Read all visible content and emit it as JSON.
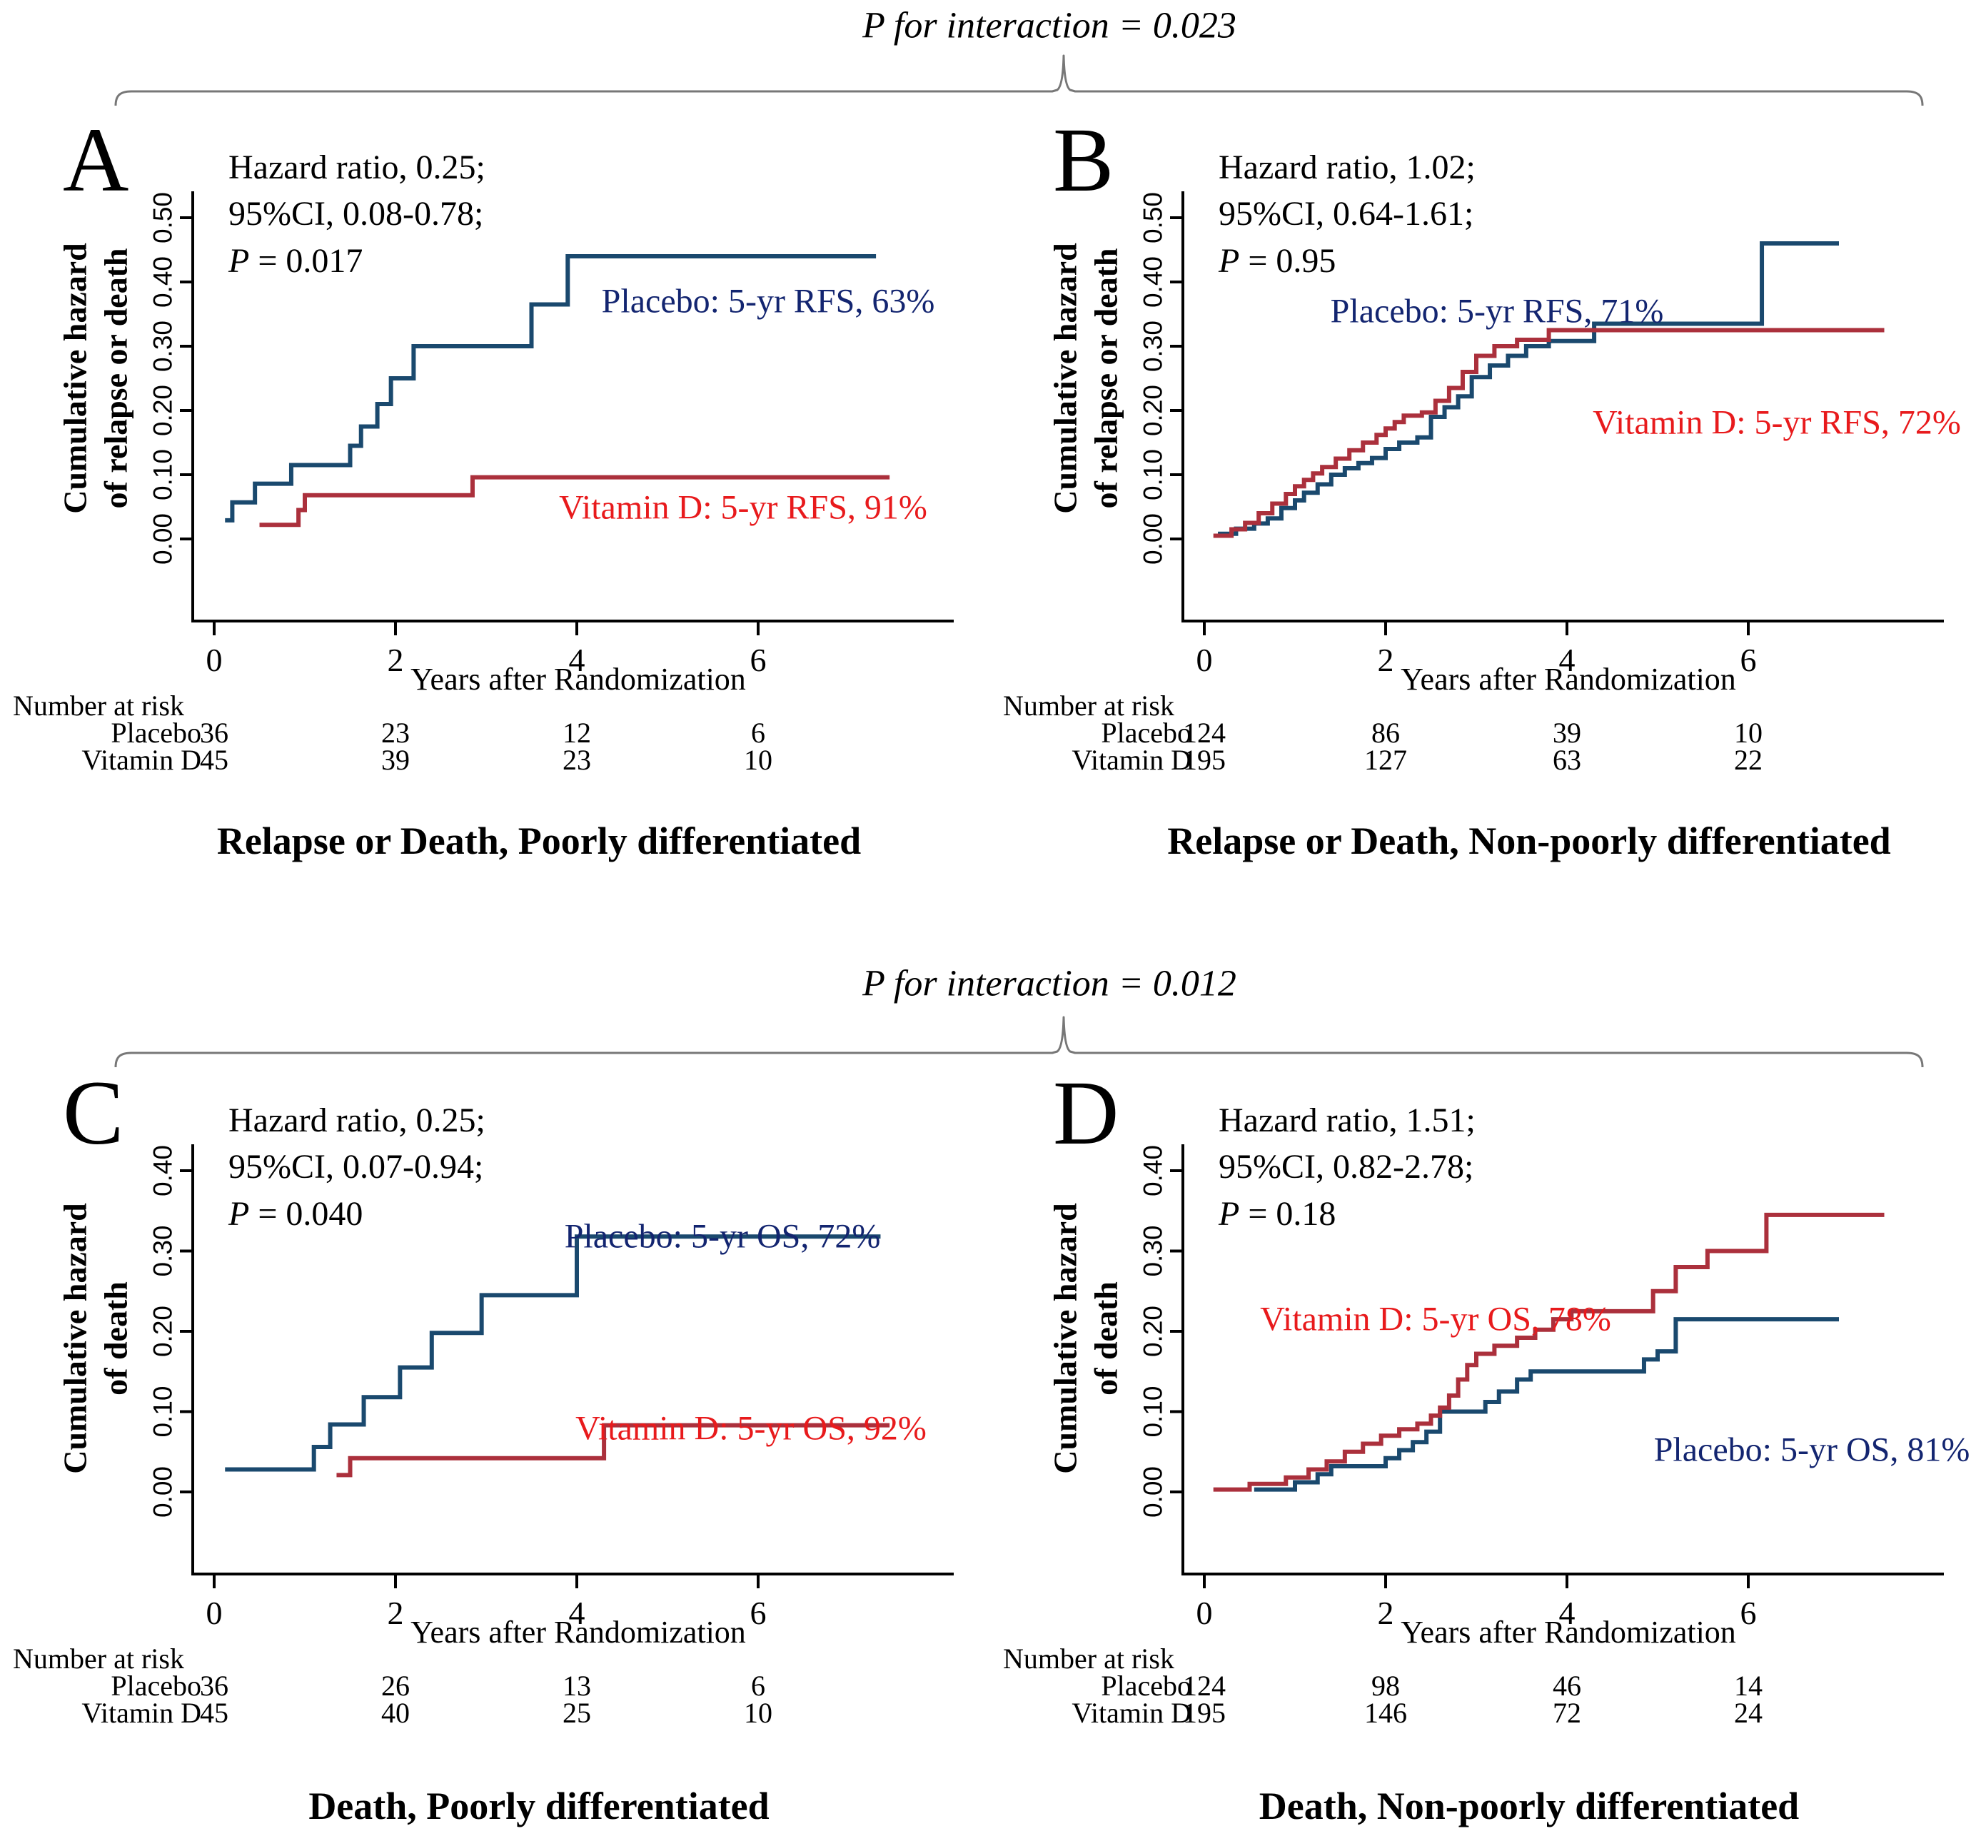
{
  "figure": {
    "braces": [
      {
        "label": "P for interaction = 0.023"
      },
      {
        "label": "P for interaction = 0.012"
      }
    ]
  },
  "colors": {
    "placebo_curve": "#1a496e",
    "vitamin_d_curve": "#ab303c",
    "placebo_label_text": "#132570",
    "vitamin_d_label_text": "#e81a1c",
    "axis": "#000000",
    "brace": "#777777"
  },
  "panels": [
    {
      "letter": "A",
      "stats": {
        "line1": "Hazard ratio, 0.25;",
        "line2": "95%CI, 0.08-0.78;",
        "p_label": "P",
        "p_rest": " = 0.017"
      },
      "ylabel_line1": "Cumulative hazard",
      "ylabel_line2": "of relapse or death",
      "xlabel": "Years after Randomization",
      "series_labels": {
        "placebo": "Placebo: 5-yr RFS, 63%",
        "vitamin_d": "Vitamin D: 5-yr RFS, 91%"
      },
      "risk": {
        "header": "Number at risk",
        "rows": [
          {
            "label": "Placebo",
            "values": [
              "36",
              "23",
              "12",
              "6"
            ]
          },
          {
            "label": "Vitamin D",
            "values": [
              "45",
              "39",
              "23",
              "10"
            ]
          }
        ]
      },
      "caption": "Relapse or Death, Poorly differentiated"
    },
    {
      "letter": "B",
      "stats": {
        "line1": "Hazard ratio, 1.02;",
        "line2": "95%CI, 0.64-1.61;",
        "p_label": "P",
        "p_rest": " = 0.95"
      },
      "ylabel_line1": "Cumulative hazard",
      "ylabel_line2": "of relapse or death",
      "xlabel": "Years after Randomization",
      "series_labels": {
        "placebo": "Placebo: 5-yr RFS, 71%",
        "vitamin_d": "Vitamin D: 5-yr RFS, 72%"
      },
      "risk": {
        "header": "Number at risk",
        "rows": [
          {
            "label": "Placebo",
            "values": [
              "124",
              "86",
              "39",
              "10"
            ]
          },
          {
            "label": "Vitamin D",
            "values": [
              "195",
              "127",
              "63",
              "22"
            ]
          }
        ]
      },
      "caption": "Relapse or Death, Non-poorly differentiated"
    },
    {
      "letter": "C",
      "stats": {
        "line1": "Hazard ratio, 0.25;",
        "line2": "95%CI, 0.07-0.94;",
        "p_label": "P",
        "p_rest": " = 0.040"
      },
      "ylabel_line1": "Cumulative hazard",
      "ylabel_line2": "of death",
      "xlabel": "Years after Randomization",
      "series_labels": {
        "placebo": "Placebo: 5-yr OS, 72%",
        "vitamin_d": "Vitamin D: 5-yr OS, 92%"
      },
      "risk": {
        "header": "Number at risk",
        "rows": [
          {
            "label": "Placebo",
            "values": [
              "36",
              "26",
              "13",
              "6"
            ]
          },
          {
            "label": "Vitamin D",
            "values": [
              "45",
              "40",
              "25",
              "10"
            ]
          }
        ]
      },
      "caption": "Death, Poorly differentiated"
    },
    {
      "letter": "D",
      "stats": {
        "line1": "Hazard ratio, 1.51;",
        "line2": "95%CI, 0.82-2.78;",
        "p_label": "P",
        "p_rest": " = 0.18"
      },
      "ylabel_line1": "Cumulative hazard",
      "ylabel_line2": "of death",
      "xlabel": "Years after Randomization",
      "series_labels": {
        "placebo": "Placebo: 5-yr OS, 81%",
        "vitamin_d": "Vitamin D: 5-yr OS, 78%"
      },
      "risk": {
        "header": "Number at risk",
        "rows": [
          {
            "label": "Placebo",
            "values": [
              "124",
              "98",
              "46",
              "14"
            ]
          },
          {
            "label": "Vitamin D",
            "values": [
              "195",
              "146",
              "72",
              "24"
            ]
          }
        ]
      },
      "caption": "Death, Non-poorly differentiated"
    }
  ],
  "chart_data": [
    {
      "panel": "A",
      "type": "line",
      "subtype": "step",
      "title": "Relapse or Death, Poorly differentiated",
      "xlabel": "Years after Randomization",
      "ylabel": "Cumulative hazard of relapse or death",
      "xticks": [
        0,
        2,
        4,
        6
      ],
      "xlim": [
        0,
        8
      ],
      "ylim": [
        0,
        0.5
      ],
      "grid": false,
      "yticks": [
        {
          "v": 0,
          "label": "0.00"
        },
        {
          "v": 0.1,
          "label": "0.10"
        },
        {
          "v": 0.2,
          "label": "0.20"
        },
        {
          "v": 0.3,
          "label": "0.30"
        },
        {
          "v": 0.4,
          "label": "0.40"
        },
        {
          "v": 0.5,
          "label": "0.50"
        }
      ],
      "hazard_ratio": "0.25",
      "ci_95": "0.08-0.78",
      "p_value": "0.017",
      "series": [
        {
          "name": "Placebo",
          "annotation": "Placebo: 5-yr RFS, 63%",
          "color": "#1a496e",
          "end": 7.3,
          "points": [
            [
              0.12,
              0.029
            ],
            [
              0.2,
              0.057
            ],
            [
              0.45,
              0.086
            ],
            [
              0.85,
              0.115
            ],
            [
              1.5,
              0.145
            ],
            [
              1.62,
              0.175
            ],
            [
              1.8,
              0.21
            ],
            [
              1.95,
              0.25
            ],
            [
              2.2,
              0.3
            ],
            [
              3.5,
              0.365
            ],
            [
              3.9,
              0.44
            ]
          ]
        },
        {
          "name": "Vitamin D",
          "annotation": "Vitamin D: 5-yr RFS, 91%",
          "color": "#ab303c",
          "end": 7.45,
          "points": [
            [
              0.5,
              0.022
            ],
            [
              0.93,
              0.045
            ],
            [
              1.0,
              0.068
            ],
            [
              2.85,
              0.096
            ]
          ]
        }
      ]
    },
    {
      "panel": "B",
      "type": "line",
      "subtype": "step",
      "title": "Relapse or Death, Non-poorly differentiated",
      "xlabel": "Years after Randomization",
      "ylabel": "Cumulative hazard of relapse or death",
      "xticks": [
        0,
        2,
        4,
        6
      ],
      "xlim": [
        0,
        8
      ],
      "ylim": [
        0,
        0.5
      ],
      "grid": false,
      "yticks": [
        {
          "v": 0,
          "label": "0.00"
        },
        {
          "v": 0.1,
          "label": "0.10"
        },
        {
          "v": 0.2,
          "label": "0.20"
        },
        {
          "v": 0.3,
          "label": "0.30"
        },
        {
          "v": 0.4,
          "label": "0.40"
        },
        {
          "v": 0.5,
          "label": "0.50"
        }
      ],
      "hazard_ratio": "1.02",
      "ci_95": "0.64-1.61",
      "p_value": "0.95",
      "series": [
        {
          "name": "Placebo",
          "annotation": "Placebo: 5-yr RFS, 71%",
          "color": "#1a496e",
          "end": 7.0,
          "points": [
            [
              0.15,
              0.008
            ],
            [
              0.35,
              0.016
            ],
            [
              0.55,
              0.024
            ],
            [
              0.7,
              0.032
            ],
            [
              0.85,
              0.048
            ],
            [
              1.0,
              0.06
            ],
            [
              1.1,
              0.072
            ],
            [
              1.25,
              0.085
            ],
            [
              1.4,
              0.1
            ],
            [
              1.55,
              0.11
            ],
            [
              1.7,
              0.118
            ],
            [
              1.85,
              0.126
            ],
            [
              2.0,
              0.14
            ],
            [
              2.15,
              0.15
            ],
            [
              2.35,
              0.158
            ],
            [
              2.5,
              0.19
            ],
            [
              2.65,
              0.205
            ],
            [
              2.8,
              0.222
            ],
            [
              2.95,
              0.252
            ],
            [
              3.15,
              0.27
            ],
            [
              3.35,
              0.285
            ],
            [
              3.55,
              0.3
            ],
            [
              3.8,
              0.308
            ],
            [
              4.3,
              0.335
            ],
            [
              6.15,
              0.46
            ]
          ]
        },
        {
          "name": "Vitamin D",
          "annotation": "Vitamin D: 5-yr RFS, 72%",
          "color": "#ab303c",
          "end": 7.5,
          "points": [
            [
              0.1,
              0.005
            ],
            [
              0.3,
              0.015
            ],
            [
              0.45,
              0.025
            ],
            [
              0.6,
              0.04
            ],
            [
              0.75,
              0.055
            ],
            [
              0.9,
              0.07
            ],
            [
              1.0,
              0.082
            ],
            [
              1.1,
              0.092
            ],
            [
              1.2,
              0.102
            ],
            [
              1.3,
              0.112
            ],
            [
              1.45,
              0.125
            ],
            [
              1.6,
              0.138
            ],
            [
              1.75,
              0.15
            ],
            [
              1.9,
              0.162
            ],
            [
              2.0,
              0.172
            ],
            [
              2.1,
              0.182
            ],
            [
              2.2,
              0.192
            ],
            [
              2.4,
              0.197
            ],
            [
              2.55,
              0.215
            ],
            [
              2.7,
              0.235
            ],
            [
              2.85,
              0.26
            ],
            [
              3.0,
              0.285
            ],
            [
              3.2,
              0.3
            ],
            [
              3.45,
              0.31
            ],
            [
              3.8,
              0.325
            ]
          ]
        }
      ]
    },
    {
      "panel": "C",
      "type": "line",
      "subtype": "step",
      "title": "Death, Poorly differentiated",
      "xlabel": "Years after Randomization",
      "ylabel": "Cumulative hazard of death",
      "xticks": [
        0,
        2,
        4,
        6
      ],
      "xlim": [
        0,
        8
      ],
      "ylim": [
        0,
        0.4
      ],
      "grid": false,
      "yticks": [
        {
          "v": 0,
          "label": "0.00"
        },
        {
          "v": 0.1,
          "label": "0.10"
        },
        {
          "v": 0.2,
          "label": "0.20"
        },
        {
          "v": 0.3,
          "label": "0.30"
        },
        {
          "v": 0.4,
          "label": "0.40"
        }
      ],
      "hazard_ratio": "0.25",
      "ci_95": "0.07-0.94",
      "p_value": "0.040",
      "series": [
        {
          "name": "Placebo",
          "annotation": "Placebo: 5-yr OS, 72%",
          "color": "#1a496e",
          "end": 7.35,
          "points": [
            [
              0.12,
              0.028
            ],
            [
              1.1,
              0.056
            ],
            [
              1.28,
              0.084
            ],
            [
              1.65,
              0.118
            ],
            [
              2.05,
              0.155
            ],
            [
              2.4,
              0.198
            ],
            [
              2.95,
              0.245
            ],
            [
              4.0,
              0.318
            ]
          ]
        },
        {
          "name": "Vitamin D",
          "annotation": "Vitamin D: 5-yr OS, 92%",
          "color": "#ab303c",
          "end": 7.45,
          "points": [
            [
              1.35,
              0.021
            ],
            [
              1.5,
              0.042
            ],
            [
              4.3,
              0.083
            ]
          ]
        }
      ]
    },
    {
      "panel": "D",
      "type": "line",
      "subtype": "step",
      "title": "Death, Non-poorly differentiated",
      "xlabel": "Years after Randomization",
      "ylabel": "Cumulative hazard of death",
      "xticks": [
        0,
        2,
        4,
        6
      ],
      "xlim": [
        0,
        8
      ],
      "ylim": [
        0,
        0.4
      ],
      "grid": false,
      "yticks": [
        {
          "v": 0,
          "label": "0.00"
        },
        {
          "v": 0.1,
          "label": "0.10"
        },
        {
          "v": 0.2,
          "label": "0.20"
        },
        {
          "v": 0.3,
          "label": "0.30"
        },
        {
          "v": 0.4,
          "label": "0.40"
        }
      ],
      "hazard_ratio": "1.51",
      "ci_95": "0.82-2.78",
      "p_value": "0.18",
      "series": [
        {
          "name": "Placebo",
          "annotation": "Placebo: 5-yr OS, 81%",
          "color": "#1a496e",
          "end": 7.0,
          "points": [
            [
              0.55,
              0.003
            ],
            [
              1.0,
              0.012
            ],
            [
              1.25,
              0.022
            ],
            [
              1.4,
              0.032
            ],
            [
              2.0,
              0.042
            ],
            [
              2.15,
              0.052
            ],
            [
              2.3,
              0.062
            ],
            [
              2.45,
              0.075
            ],
            [
              2.6,
              0.1
            ],
            [
              3.1,
              0.112
            ],
            [
              3.25,
              0.125
            ],
            [
              3.45,
              0.14
            ],
            [
              3.6,
              0.15
            ],
            [
              4.85,
              0.165
            ],
            [
              5.0,
              0.175
            ],
            [
              5.2,
              0.215
            ]
          ]
        },
        {
          "name": "Vitamin D",
          "annotation": "Vitamin D: 5-yr OS, 78%",
          "color": "#ab303c",
          "end": 7.5,
          "points": [
            [
              0.1,
              0.003
            ],
            [
              0.5,
              0.01
            ],
            [
              0.9,
              0.018
            ],
            [
              1.15,
              0.028
            ],
            [
              1.35,
              0.038
            ],
            [
              1.55,
              0.05
            ],
            [
              1.75,
              0.06
            ],
            [
              1.95,
              0.07
            ],
            [
              2.15,
              0.078
            ],
            [
              2.35,
              0.085
            ],
            [
              2.5,
              0.095
            ],
            [
              2.6,
              0.105
            ],
            [
              2.7,
              0.12
            ],
            [
              2.8,
              0.14
            ],
            [
              2.9,
              0.158
            ],
            [
              3.0,
              0.172
            ],
            [
              3.2,
              0.182
            ],
            [
              3.45,
              0.192
            ],
            [
              3.65,
              0.202
            ],
            [
              3.85,
              0.215
            ],
            [
              4.05,
              0.225
            ],
            [
              4.95,
              0.25
            ],
            [
              5.2,
              0.28
            ],
            [
              5.55,
              0.3
            ],
            [
              6.2,
              0.345
            ]
          ]
        }
      ]
    }
  ]
}
